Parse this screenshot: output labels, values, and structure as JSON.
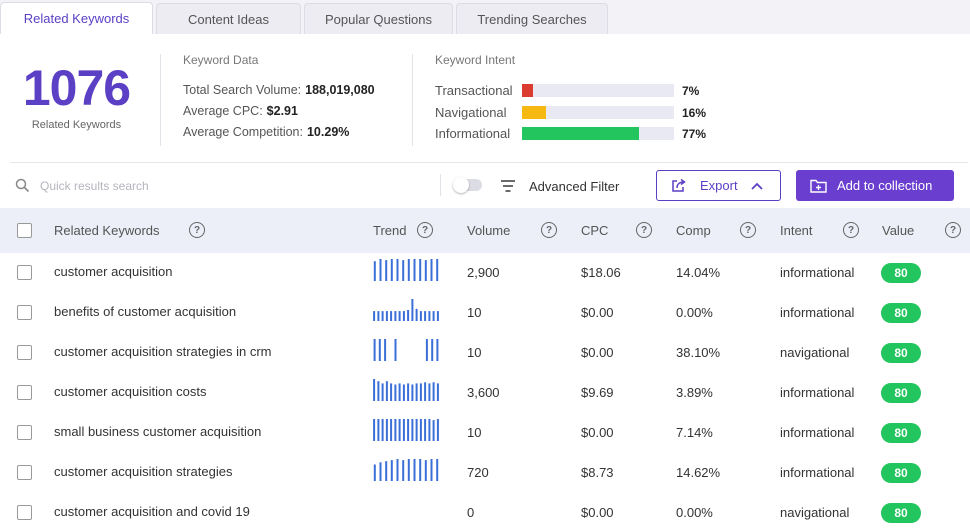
{
  "tabs": [
    {
      "label": "Related Keywords",
      "active": true
    },
    {
      "label": "Content Ideas",
      "active": false
    },
    {
      "label": "Popular Questions",
      "active": false
    },
    {
      "label": "Trending Searches",
      "active": false
    }
  ],
  "summary": {
    "count": "1076",
    "count_label": "Related Keywords",
    "keyword_data": {
      "title": "Keyword Data",
      "total_search_volume_label": "Total Search Volume:",
      "total_search_volume": "188,019,080",
      "average_cpc_label": "Average CPC:",
      "average_cpc": "$2.91",
      "average_competition_label": "Average Competition:",
      "average_competition": "10.29%"
    },
    "keyword_intent": {
      "title": "Keyword Intent",
      "items": [
        {
          "label": "Transactional",
          "pct": "7%",
          "fraction": 0.07,
          "color": "#dc3b2f"
        },
        {
          "label": "Navigational",
          "pct": "16%",
          "fraction": 0.16,
          "color": "#f6b911"
        },
        {
          "label": "Informational",
          "pct": "77%",
          "fraction": 0.77,
          "color": "#22c55e"
        }
      ]
    }
  },
  "toolbar": {
    "search_placeholder": "Quick results search",
    "advanced_filter": "Advanced Filter",
    "export": "Export",
    "add_to_collection": "Add to collection"
  },
  "table": {
    "headers": {
      "keyword": "Related Keywords",
      "trend": "Trend",
      "volume": "Volume",
      "cpc": "CPC",
      "comp": "Comp",
      "intent": "Intent",
      "value": "Value"
    },
    "rows": [
      {
        "keyword": "customer acquisition",
        "trend": [
          0.9,
          1,
          0.95,
          1,
          1,
          0.95,
          1,
          1,
          1,
          0.95,
          1,
          1
        ],
        "volume": "2,900",
        "cpc": "$18.06",
        "comp": "14.04%",
        "intent": "informational",
        "value": "80"
      },
      {
        "keyword": "benefits of customer acquisition",
        "trend": [
          0.45,
          0.45,
          0.45,
          0.45,
          0.45,
          0.45,
          0.45,
          0.45,
          0.5,
          1,
          0.55,
          0.45,
          0.45,
          0.45,
          0.45,
          0.45
        ],
        "volume": "10",
        "cpc": "$0.00",
        "comp": "0.00%",
        "intent": "informational",
        "value": "80"
      },
      {
        "keyword": "customer acquisition strategies in crm",
        "trend": [
          1,
          1,
          1,
          0,
          1,
          0,
          0,
          0,
          0,
          0,
          1,
          1,
          1
        ],
        "volume": "10",
        "cpc": "$0.00",
        "comp": "38.10%",
        "intent": "navigational",
        "value": "80"
      },
      {
        "keyword": "customer acquisition costs",
        "trend": [
          1,
          0.9,
          0.8,
          0.9,
          0.8,
          0.75,
          0.8,
          0.75,
          0.8,
          0.75,
          0.8,
          0.8,
          0.85,
          0.8,
          0.85,
          0.8
        ],
        "volume": "3,600",
        "cpc": "$9.69",
        "comp": "3.89%",
        "intent": "informational",
        "value": "80"
      },
      {
        "keyword": "small business customer acquisition",
        "trend": [
          1,
          1,
          1,
          1,
          1,
          1,
          1,
          1,
          1,
          1,
          1,
          1,
          1,
          1,
          0.95,
          1
        ],
        "volume": "10",
        "cpc": "$0.00",
        "comp": "7.14%",
        "intent": "informational",
        "value": "80"
      },
      {
        "keyword": "customer acquisition strategies",
        "trend": [
          0.75,
          0.85,
          0.9,
          0.95,
          1,
          0.95,
          1,
          1,
          1,
          0.95,
          1,
          1
        ],
        "volume": "720",
        "cpc": "$8.73",
        "comp": "14.62%",
        "intent": "informational",
        "value": "80"
      },
      {
        "keyword": "customer acquisition and covid 19",
        "trend": [],
        "volume": "0",
        "cpc": "$0.00",
        "comp": "0.00%",
        "intent": "navigational",
        "value": "80"
      }
    ]
  }
}
